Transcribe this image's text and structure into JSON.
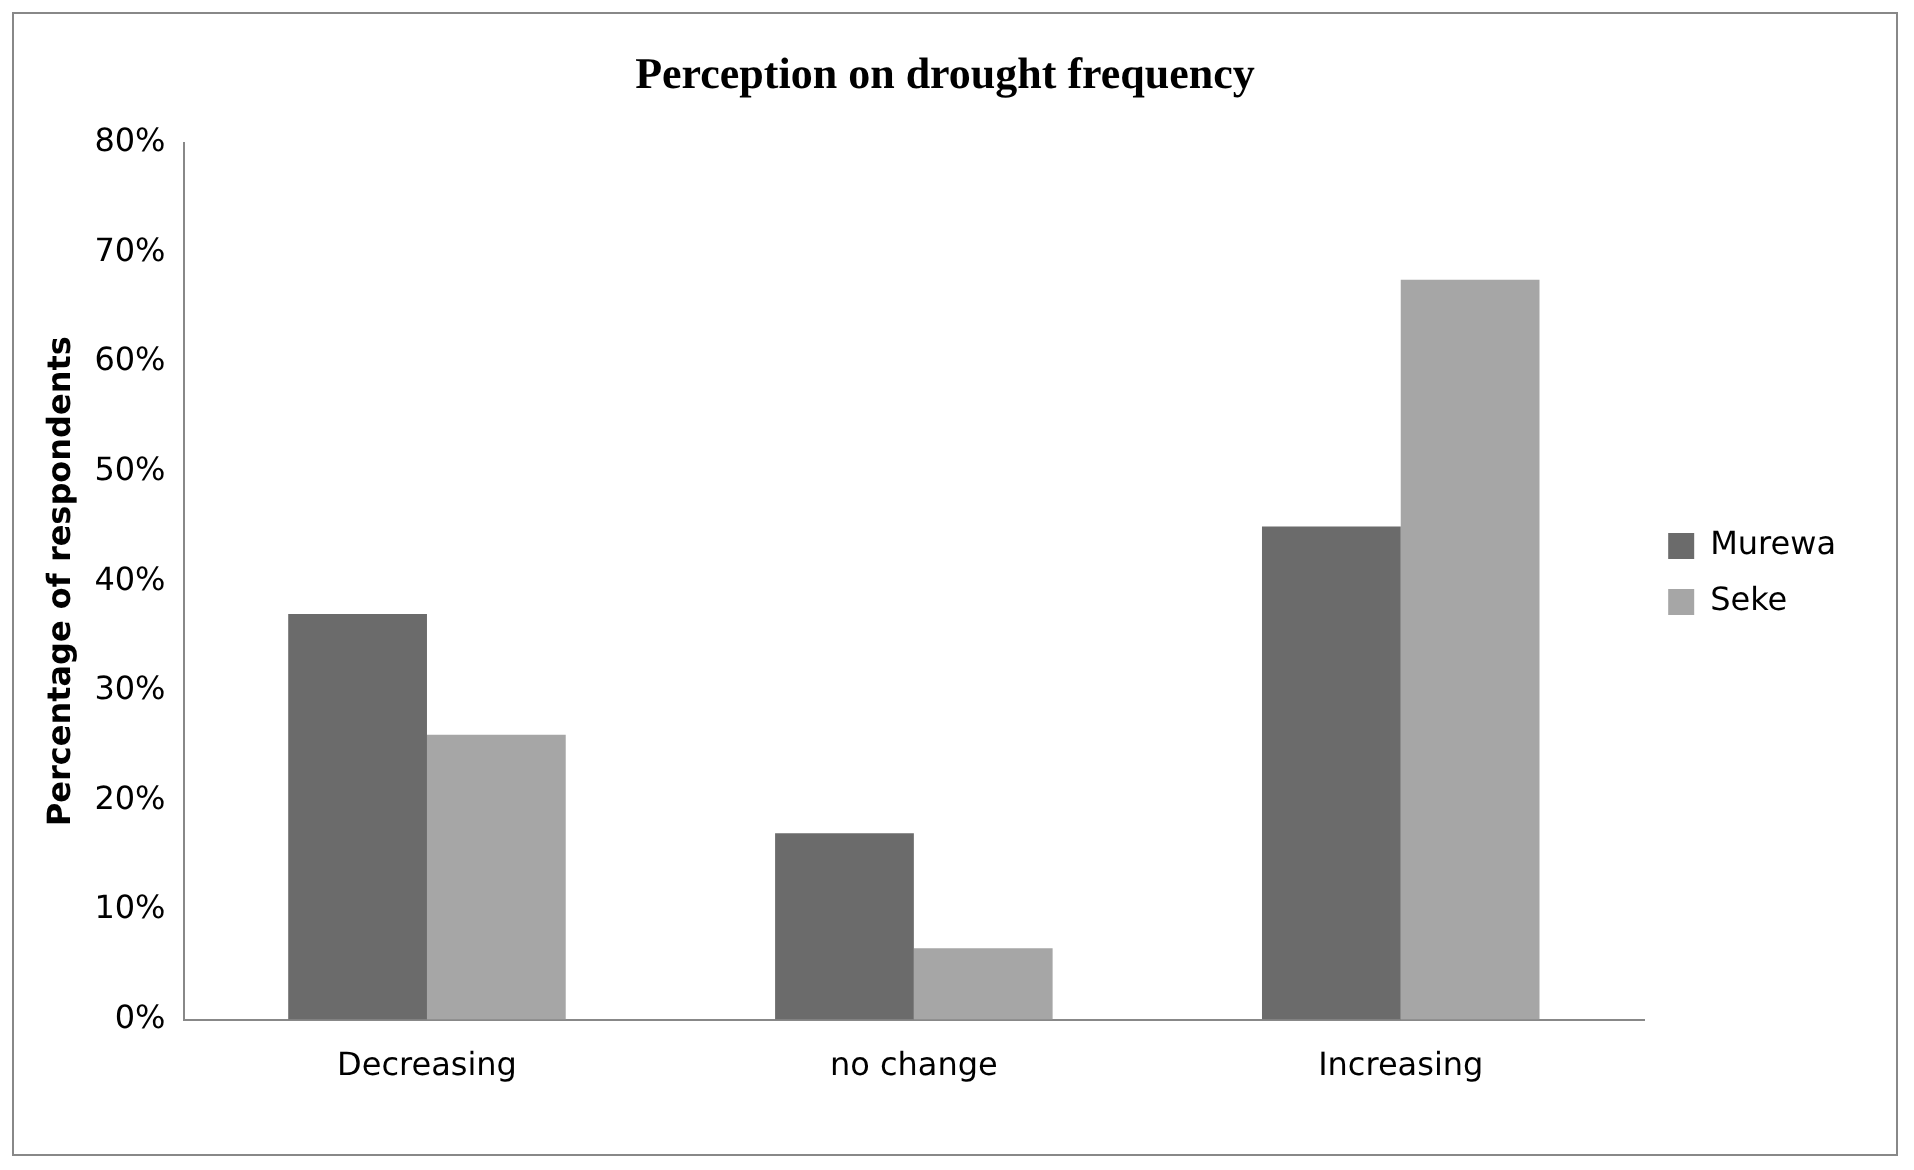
{
  "chart_data": {
    "type": "bar",
    "title": "Perception on drought frequency",
    "ylabel": "Percentage of respondents",
    "categories": [
      "Decreasing",
      "no change",
      "Increasing"
    ],
    "series": [
      {
        "name": "Murewa",
        "color": "#6b6b6b",
        "values": [
          37,
          17,
          45
        ]
      },
      {
        "name": "Seke",
        "color": "#a6a6a6",
        "values": [
          26,
          6.5,
          67.5
        ]
      }
    ],
    "ylim": [
      0,
      80
    ],
    "yticks": [
      {
        "value": 0,
        "label": "0%"
      },
      {
        "value": 10,
        "label": "10%"
      },
      {
        "value": 20,
        "label": "20%"
      },
      {
        "value": 30,
        "label": "30%"
      },
      {
        "value": 40,
        "label": "40%"
      },
      {
        "value": 50,
        "label": "50%"
      },
      {
        "value": 60,
        "label": "60%"
      },
      {
        "value": 70,
        "label": "70%"
      },
      {
        "value": 80,
        "label": "80%"
      }
    ],
    "grid": false,
    "legend": "right"
  }
}
